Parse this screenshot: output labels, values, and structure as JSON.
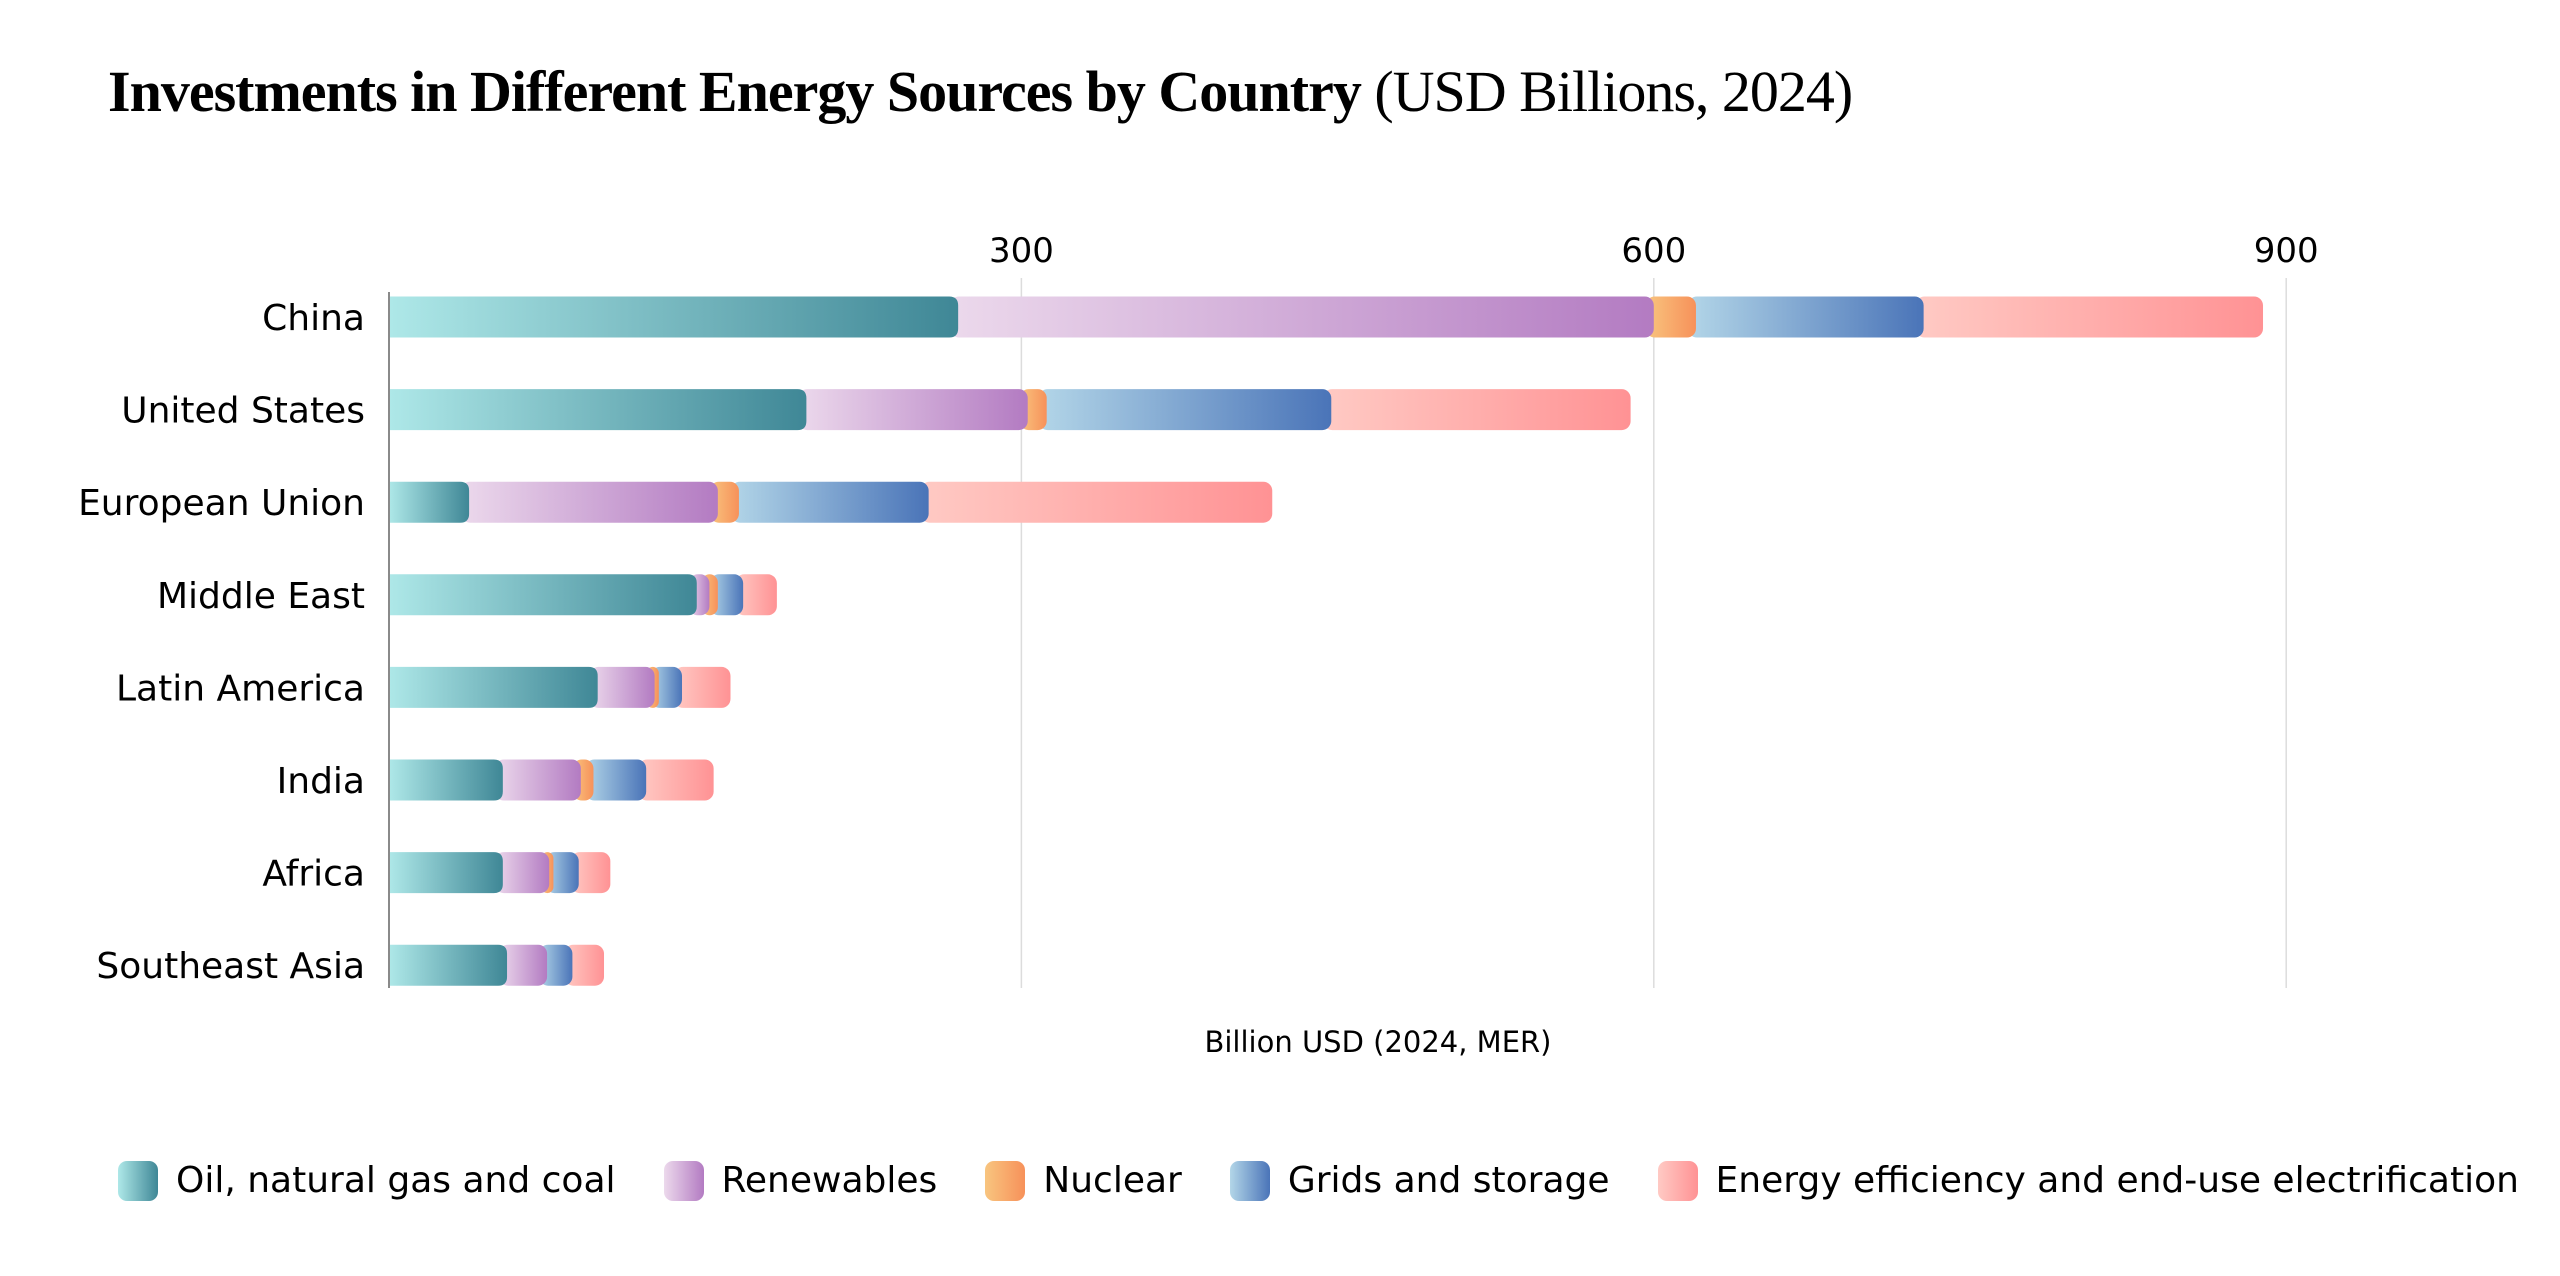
{
  "chart_data": {
    "type": "bar",
    "orientation": "horizontal",
    "stacked": true,
    "title": "Investments in Different Energy Sources by Country",
    "subtitle": "(USD Billions, 2024)",
    "xlabel": "Billion USD (2024, MER)",
    "ylabel": "",
    "xlim": [
      0,
      980
    ],
    "xticks": [
      300,
      600,
      900
    ],
    "xtick_labels": [
      "300",
      "600",
      "900"
    ],
    "x_tick_position": "top",
    "grid": true,
    "legend_position": "bottom",
    "categories": [
      "China",
      "United States",
      "European Union",
      "Middle East",
      "Latin America",
      "India",
      "Africa",
      "Southeast Asia"
    ],
    "series": [
      {
        "name": "Oil, natural gas and coal",
        "values": [
          270,
          198,
          38,
          146,
          99,
          54,
          54,
          56
        ],
        "color_start": "#aee8e8",
        "color_end": "#3f8796"
      },
      {
        "name": "Renewables",
        "values": [
          330,
          105,
          118,
          6,
          27,
          37,
          22,
          19
        ],
        "color_start": "#ecd9ec",
        "color_end": "#b37bc2"
      },
      {
        "name": "Nuclear",
        "values": [
          20,
          9,
          10,
          4,
          2,
          6,
          2,
          0
        ],
        "color_start": "#f8c57f",
        "color_end": "#f7915a"
      },
      {
        "name": "Grids and storage",
        "values": [
          108,
          135,
          90,
          12,
          11,
          25,
          12,
          12
        ],
        "color_start": "#b3d6e8",
        "color_end": "#4a74b8"
      },
      {
        "name": "Energy efficiency and end-use electrification",
        "values": [
          161,
          142,
          163,
          16,
          23,
          32,
          15,
          15
        ],
        "color_start": "#ffcac4",
        "color_end": "#ff9294"
      }
    ]
  }
}
